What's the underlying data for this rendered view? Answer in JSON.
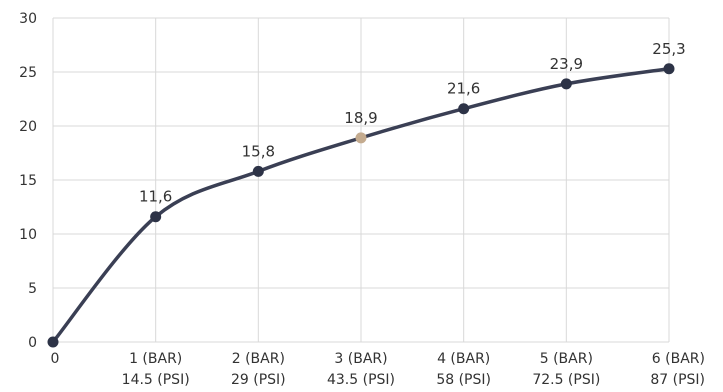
{
  "chart_data": {
    "type": "line",
    "title": "",
    "xlabel": "",
    "ylabel": "",
    "ylim": [
      0,
      30
    ],
    "yticks": [
      "0",
      "5",
      "10",
      "15",
      "20",
      "25",
      "30"
    ],
    "x": [
      0,
      1,
      2,
      3,
      4,
      5,
      6
    ],
    "xtick_labels": [
      {
        "line1": "0",
        "line2": ""
      },
      {
        "line1": "1 (BAR)",
        "line2": "14.5 (PSI)"
      },
      {
        "line1": "2 (BAR)",
        "line2": "29 (PSI)"
      },
      {
        "line1": "3 (BAR)",
        "line2": "43.5 (PSI)"
      },
      {
        "line1": "4 (BAR)",
        "line2": "58 (PSI)"
      },
      {
        "line1": "5 (BAR)",
        "line2": "72.5 (PSI)"
      },
      {
        "line1": "6 (BAR)",
        "line2": "87 (PSI)"
      }
    ],
    "values": [
      0,
      11.6,
      15.8,
      18.9,
      21.6,
      23.9,
      25.3
    ],
    "data_labels": [
      "",
      "11,6",
      "15,8",
      "18,9",
      "21,6",
      "23,9",
      "25,3"
    ],
    "highlight_index": 3,
    "grid": true,
    "colors": {
      "line": "#3a3f54",
      "point": "#2d3347",
      "highlight": "#c4ab8f",
      "grid": "#d9d9d9"
    }
  }
}
